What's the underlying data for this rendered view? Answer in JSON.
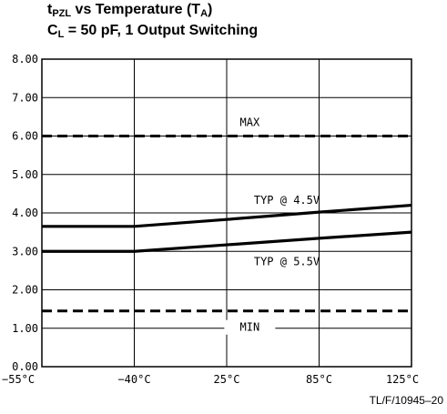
{
  "title": {
    "line1_main": "t",
    "line1_sub": "PZL",
    "line1_rest": " vs Temperature (T",
    "line1_sub2": "A",
    "line1_end": ")",
    "line2_main": "C",
    "line2_sub": "L",
    "line2_rest": " = 50 pF, 1 Output Switching"
  },
  "figure_ref": "TL/F/10945–20",
  "chart_data": {
    "type": "line",
    "title": "tPZL vs Temperature (TA) CL = 50 pF, 1 Output Switching",
    "x": [
      "−55°C",
      "−40°C",
      "25°C",
      "85°C",
      "125°C"
    ],
    "xlabel": "",
    "ylabel": "",
    "ylim": [
      0,
      8
    ],
    "yticks": [
      "0.00",
      "1.00",
      "2.00",
      "3.00",
      "4.00",
      "5.00",
      "6.00",
      "7.00",
      "8.00"
    ],
    "grid": true,
    "series": [
      {
        "name": "MAX",
        "values": [
          6.0,
          6.0,
          6.0,
          6.0,
          6.0
        ],
        "style": "dashed"
      },
      {
        "name": "TYP @ 4.5V",
        "values": [
          3.65,
          3.65,
          3.83,
          4.02,
          4.2
        ],
        "style": "solid"
      },
      {
        "name": "TYP @ 5.5V",
        "values": [
          3.0,
          3.0,
          3.17,
          3.34,
          3.5
        ],
        "style": "solid"
      },
      {
        "name": "MIN",
        "values": [
          1.45,
          1.45,
          1.45,
          1.45,
          1.45
        ],
        "style": "dashed"
      }
    ]
  }
}
